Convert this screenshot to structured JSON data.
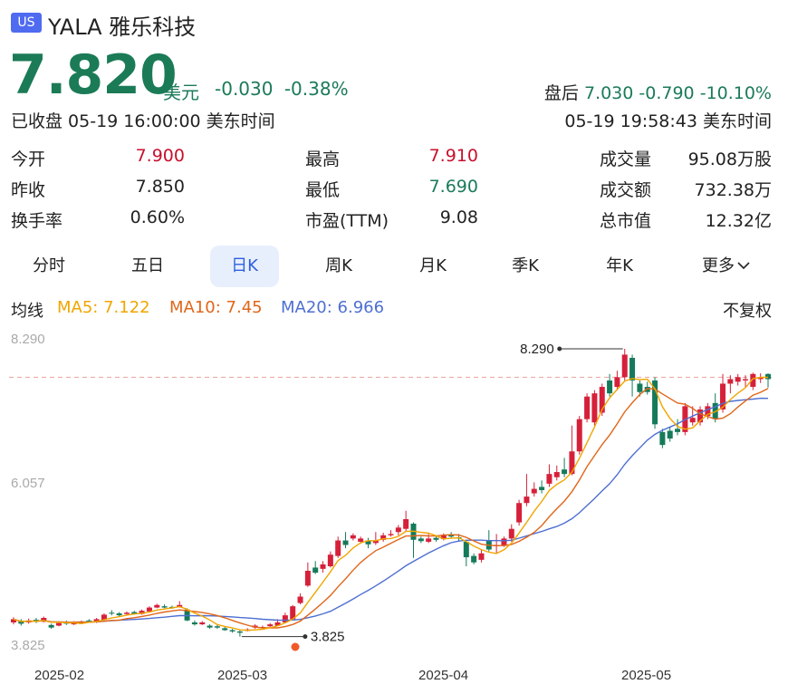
{
  "header": {
    "market_badge": "US",
    "title": "YALA 雅乐科技"
  },
  "quote": {
    "price": "7.820",
    "currency": "美元",
    "change": "-0.030",
    "change_pct": "-0.38%",
    "status": "已收盘 05-19 16:00:00 美东时间",
    "after_hours": {
      "label": "盘后",
      "price": "7.030",
      "change": "-0.790",
      "change_pct": "-10.10%",
      "time": "05-19 19:58:43 美东时间"
    }
  },
  "stats": [
    {
      "label": "今开",
      "value": "7.900",
      "color": "red"
    },
    {
      "label": "最高",
      "value": "7.910",
      "color": "red"
    },
    {
      "label": "成交量",
      "value": "95.08万股",
      "color": "neutral"
    },
    {
      "label": "昨收",
      "value": "7.850",
      "color": "neutral"
    },
    {
      "label": "最低",
      "value": "7.690",
      "color": "green"
    },
    {
      "label": "成交额",
      "value": "732.38万",
      "color": "neutral"
    },
    {
      "label": "换手率",
      "value": "0.60%",
      "color": "neutral"
    },
    {
      "label": "市盈(TTM)",
      "value": "9.08",
      "color": "neutral"
    },
    {
      "label": "总市值",
      "value": "12.32亿",
      "color": "neutral"
    }
  ],
  "tabs": [
    {
      "label": "分时",
      "active": false
    },
    {
      "label": "五日",
      "active": false
    },
    {
      "label": "日K",
      "active": true
    },
    {
      "label": "周K",
      "active": false
    },
    {
      "label": "月K",
      "active": false
    },
    {
      "label": "季K",
      "active": false
    },
    {
      "label": "年K",
      "active": false
    },
    {
      "label": "更多",
      "active": false
    }
  ],
  "ma": {
    "label": "均线",
    "ma5": "MA5: 7.122",
    "ma10": "MA10: 7.45",
    "ma20": "MA20: 6.966",
    "adjust": "不复权"
  },
  "chart_data": {
    "type": "candlestick",
    "y_labels": [
      "8.290",
      "6.057",
      "3.825"
    ],
    "ylim": [
      3.825,
      8.29
    ],
    "max_label": "8.290",
    "min_label": "3.825",
    "reference_price": 7.85,
    "x_labels": [
      "2025-02",
      "2025-03",
      "2025-04",
      "2025-05"
    ],
    "colors": {
      "up": "#d6203a",
      "down": "#157a5a",
      "ma5": "#f0a500",
      "ma10": "#e0661a",
      "ma20": "#4e6fd1"
    },
    "candles": [
      {
        "o": 4.05,
        "c": 4.1,
        "h": 4.13,
        "l": 4.02
      },
      {
        "o": 4.07,
        "c": 4.03,
        "h": 4.1,
        "l": 4.0
      },
      {
        "o": 4.05,
        "c": 4.08,
        "h": 4.11,
        "l": 4.03
      },
      {
        "o": 4.09,
        "c": 4.06,
        "h": 4.12,
        "l": 4.04
      },
      {
        "o": 4.06,
        "c": 4.12,
        "h": 4.14,
        "l": 4.05
      },
      {
        "o": 4.01,
        "c": 3.97,
        "h": 4.03,
        "l": 3.95
      },
      {
        "o": 4.0,
        "c": 4.04,
        "h": 4.06,
        "l": 3.99
      },
      {
        "o": 4.05,
        "c": 4.03,
        "h": 4.08,
        "l": 4.01
      },
      {
        "o": 4.02,
        "c": 4.06,
        "h": 4.07,
        "l": 4.01
      },
      {
        "o": 4.04,
        "c": 4.06,
        "h": 4.08,
        "l": 4.03
      },
      {
        "o": 4.08,
        "c": 4.07,
        "h": 4.1,
        "l": 4.05
      },
      {
        "o": 4.05,
        "c": 4.1,
        "h": 4.12,
        "l": 4.04
      },
      {
        "o": 4.09,
        "c": 4.17,
        "h": 4.19,
        "l": 4.08
      },
      {
        "o": 4.2,
        "c": 4.19,
        "h": 4.24,
        "l": 4.16
      },
      {
        "o": 4.19,
        "c": 4.16,
        "h": 4.21,
        "l": 4.14
      },
      {
        "o": 4.18,
        "c": 4.2,
        "h": 4.22,
        "l": 4.16
      },
      {
        "o": 4.21,
        "c": 4.18,
        "h": 4.23,
        "l": 4.17
      },
      {
        "o": 4.18,
        "c": 4.23,
        "h": 4.25,
        "l": 4.17
      },
      {
        "o": 4.22,
        "c": 4.28,
        "h": 4.3,
        "l": 4.21
      },
      {
        "o": 4.28,
        "c": 4.32,
        "h": 4.34,
        "l": 4.27
      },
      {
        "o": 4.3,
        "c": 4.28,
        "h": 4.33,
        "l": 4.27
      },
      {
        "o": 4.29,
        "c": 4.27,
        "h": 4.31,
        "l": 4.26
      },
      {
        "o": 4.29,
        "c": 4.32,
        "h": 4.38,
        "l": 4.28
      },
      {
        "o": 4.25,
        "c": 4.08,
        "h": 4.27,
        "l": 4.07
      },
      {
        "o": 4.05,
        "c": 4.02,
        "h": 4.08,
        "l": 4.0
      },
      {
        "o": 4.02,
        "c": 4.05,
        "h": 4.07,
        "l": 4.01
      },
      {
        "o": 4.0,
        "c": 3.97,
        "h": 4.02,
        "l": 3.95
      },
      {
        "o": 3.99,
        "c": 3.97,
        "h": 4.01,
        "l": 3.95
      },
      {
        "o": 3.96,
        "c": 3.93,
        "h": 3.98,
        "l": 3.92
      },
      {
        "o": 3.93,
        "c": 3.91,
        "h": 3.95,
        "l": 3.89
      },
      {
        "o": 3.91,
        "c": 3.89,
        "h": 3.93,
        "l": 3.83
      },
      {
        "o": 3.92,
        "c": 3.94,
        "h": 3.96,
        "l": 3.91
      },
      {
        "o": 3.97,
        "c": 4.0,
        "h": 4.02,
        "l": 3.95
      },
      {
        "o": 3.96,
        "c": 3.98,
        "h": 4.0,
        "l": 3.95
      },
      {
        "o": 3.99,
        "c": 4.02,
        "h": 4.04,
        "l": 3.98
      },
      {
        "o": 4.0,
        "c": 4.05,
        "h": 4.1,
        "l": 3.99
      },
      {
        "o": 4.05,
        "c": 4.16,
        "h": 4.2,
        "l": 4.04
      },
      {
        "o": 4.1,
        "c": 4.3,
        "h": 4.32,
        "l": 4.08
      },
      {
        "o": 4.35,
        "c": 4.45,
        "h": 4.5,
        "l": 4.33
      },
      {
        "o": 4.62,
        "c": 4.85,
        "h": 4.98,
        "l": 4.6
      },
      {
        "o": 4.9,
        "c": 4.82,
        "h": 5.0,
        "l": 4.8
      },
      {
        "o": 4.88,
        "c": 4.95,
        "h": 5.0,
        "l": 4.82
      },
      {
        "o": 4.92,
        "c": 5.1,
        "h": 5.15,
        "l": 4.9
      },
      {
        "o": 5.08,
        "c": 5.32,
        "h": 5.38,
        "l": 5.05
      },
      {
        "o": 5.32,
        "c": 5.25,
        "h": 5.45,
        "l": 5.2
      },
      {
        "o": 5.35,
        "c": 5.4,
        "h": 5.43,
        "l": 5.32
      },
      {
        "o": 5.3,
        "c": 5.35,
        "h": 5.38,
        "l": 5.27
      },
      {
        "o": 5.32,
        "c": 5.26,
        "h": 5.36,
        "l": 5.2
      },
      {
        "o": 5.28,
        "c": 5.32,
        "h": 5.45,
        "l": 5.25
      },
      {
        "o": 5.33,
        "c": 5.4,
        "h": 5.44,
        "l": 5.3
      },
      {
        "o": 5.4,
        "c": 5.42,
        "h": 5.48,
        "l": 5.38
      },
      {
        "o": 5.45,
        "c": 5.52,
        "h": 5.56,
        "l": 5.4
      },
      {
        "o": 5.5,
        "c": 5.65,
        "h": 5.78,
        "l": 5.46
      },
      {
        "o": 5.58,
        "c": 5.33,
        "h": 5.6,
        "l": 5.05
      },
      {
        "o": 5.35,
        "c": 5.31,
        "h": 5.38,
        "l": 5.28
      },
      {
        "o": 5.3,
        "c": 5.35,
        "h": 5.42,
        "l": 5.28
      },
      {
        "o": 5.36,
        "c": 5.33,
        "h": 5.4,
        "l": 5.3
      },
      {
        "o": 5.34,
        "c": 5.4,
        "h": 5.43,
        "l": 5.32
      },
      {
        "o": 5.4,
        "c": 5.38,
        "h": 5.45,
        "l": 5.35
      },
      {
        "o": 5.37,
        "c": 5.35,
        "h": 5.42,
        "l": 5.3
      },
      {
        "o": 5.3,
        "c": 5.06,
        "h": 5.32,
        "l": 4.92
      },
      {
        "o": 5.08,
        "c": 4.98,
        "h": 5.12,
        "l": 4.95
      },
      {
        "o": 5.02,
        "c": 5.12,
        "h": 5.18,
        "l": 4.98
      },
      {
        "o": 5.32,
        "c": 5.18,
        "h": 5.48,
        "l": 5.15
      },
      {
        "o": 5.23,
        "c": 5.25,
        "h": 5.42,
        "l": 5.12
      },
      {
        "o": 5.25,
        "c": 5.35,
        "h": 5.38,
        "l": 5.22
      },
      {
        "o": 5.35,
        "c": 5.5,
        "h": 5.57,
        "l": 5.3
      },
      {
        "o": 5.6,
        "c": 5.9,
        "h": 5.95,
        "l": 5.55
      },
      {
        "o": 5.9,
        "c": 6.0,
        "h": 6.35,
        "l": 5.85
      },
      {
        "o": 6.05,
        "c": 6.12,
        "h": 6.22,
        "l": 6.0
      },
      {
        "o": 6.15,
        "c": 6.1,
        "h": 6.25,
        "l": 6.05
      },
      {
        "o": 6.2,
        "c": 6.35,
        "h": 6.5,
        "l": 6.15
      },
      {
        "o": 6.3,
        "c": 6.38,
        "h": 6.48,
        "l": 6.25
      },
      {
        "o": 6.42,
        "c": 6.35,
        "h": 6.6,
        "l": 6.3
      },
      {
        "o": 6.35,
        "c": 6.7,
        "h": 7.1,
        "l": 6.33
      },
      {
        "o": 6.7,
        "c": 7.2,
        "h": 7.25,
        "l": 6.65
      },
      {
        "o": 7.2,
        "c": 7.55,
        "h": 7.6,
        "l": 7.15
      },
      {
        "o": 7.15,
        "c": 7.6,
        "h": 7.65,
        "l": 7.1
      },
      {
        "o": 7.3,
        "c": 7.7,
        "h": 7.75,
        "l": 7.25
      },
      {
        "o": 7.8,
        "c": 7.6,
        "h": 7.9,
        "l": 7.55
      },
      {
        "o": 7.7,
        "c": 7.85,
        "h": 7.95,
        "l": 7.65
      },
      {
        "o": 7.85,
        "c": 8.2,
        "h": 8.29,
        "l": 7.8
      },
      {
        "o": 8.15,
        "c": 7.8,
        "h": 8.2,
        "l": 7.55
      },
      {
        "o": 7.75,
        "c": 7.62,
        "h": 7.8,
        "l": 7.55
      },
      {
        "o": 7.7,
        "c": 7.62,
        "h": 7.78,
        "l": 7.58
      },
      {
        "o": 7.8,
        "c": 7.12,
        "h": 7.85,
        "l": 7.05
      },
      {
        "o": 7.0,
        "c": 6.8,
        "h": 7.05,
        "l": 6.75
      },
      {
        "o": 7.02,
        "c": 6.9,
        "h": 7.08,
        "l": 6.85
      },
      {
        "o": 7.05,
        "c": 7.0,
        "h": 7.2,
        "l": 6.95
      },
      {
        "o": 7.0,
        "c": 7.4,
        "h": 7.45,
        "l": 6.95
      },
      {
        "o": 7.15,
        "c": 7.22,
        "h": 7.4,
        "l": 7.1
      },
      {
        "o": 7.15,
        "c": 7.35,
        "h": 7.4,
        "l": 7.1
      },
      {
        "o": 7.25,
        "c": 7.4,
        "h": 7.45,
        "l": 7.2
      },
      {
        "o": 7.45,
        "c": 7.2,
        "h": 7.6,
        "l": 7.15
      },
      {
        "o": 7.35,
        "c": 7.75,
        "h": 7.9,
        "l": 7.3
      },
      {
        "o": 7.75,
        "c": 7.82,
        "h": 7.88,
        "l": 7.6
      },
      {
        "o": 7.78,
        "c": 7.85,
        "h": 7.9,
        "l": 7.72
      },
      {
        "o": 7.8,
        "c": 7.82,
        "h": 7.88,
        "l": 7.7
      },
      {
        "o": 7.7,
        "c": 7.9,
        "h": 7.92,
        "l": 7.65
      },
      {
        "o": 7.82,
        "c": 7.85,
        "h": 7.91,
        "l": 7.76
      },
      {
        "o": 7.9,
        "c": 7.82,
        "h": 7.91,
        "l": 7.69
      }
    ]
  }
}
